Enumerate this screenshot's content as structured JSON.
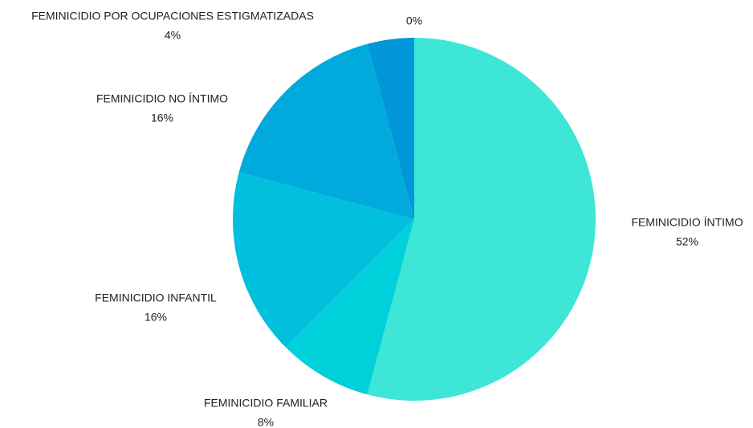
{
  "chart_data": {
    "type": "pie",
    "categories": [
      "FEMINICIDIO ÍNTIMO",
      "FEMINICIDIO FAMILIAR",
      "FEMINICIDIO INFANTIL",
      "FEMINICIDIO NO ÍNTIMO",
      "FEMINICIDIO POR OCUPACIONES ESTIGMATIZADAS",
      null
    ],
    "values": [
      52,
      8,
      16,
      16,
      4,
      0
    ],
    "value_labels": [
      "52%",
      "8%",
      "16%",
      "16%",
      "4%",
      "0%"
    ],
    "colors": [
      "#3de6d6",
      "#00d0da",
      "#00c0de",
      "#00aadd",
      "#0096d8",
      "#1f7fcf"
    ]
  }
}
